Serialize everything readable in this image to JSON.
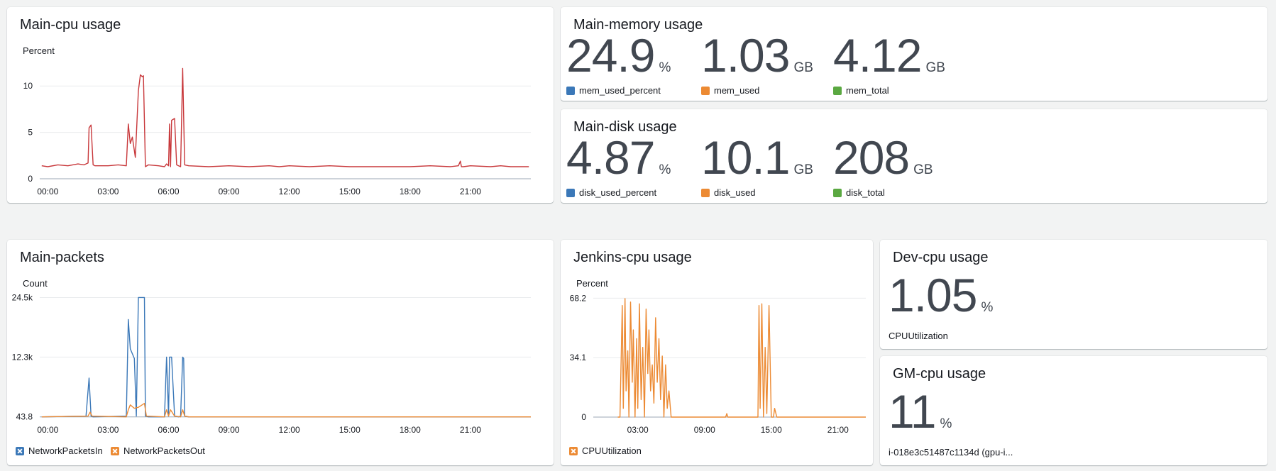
{
  "colors": {
    "blue": "#3b78b8",
    "orange": "#ec8a33",
    "green": "#5aa841",
    "red": "#c8383b",
    "grid": "#e9ebed"
  },
  "widgets": {
    "main_cpu": {
      "title": "Main-cpu usage",
      "unit": "Percent"
    },
    "main_memory": {
      "title": "Main-memory usage",
      "metrics": [
        {
          "value": "24.9",
          "unit": "%",
          "label": "mem_used_percent",
          "color": "#3b78b8"
        },
        {
          "value": "1.03",
          "unit": "GB",
          "label": "mem_used",
          "color": "#ec8a33"
        },
        {
          "value": "4.12",
          "unit": "GB",
          "label": "mem_total",
          "color": "#5aa841"
        }
      ]
    },
    "main_disk": {
      "title": "Main-disk usage",
      "metrics": [
        {
          "value": "4.87",
          "unit": "%",
          "label": "disk_used_percent",
          "color": "#3b78b8"
        },
        {
          "value": "10.1",
          "unit": "GB",
          "label": "disk_used",
          "color": "#ec8a33"
        },
        {
          "value": "208",
          "unit": "GB",
          "label": "disk_total",
          "color": "#5aa841"
        }
      ]
    },
    "main_packets": {
      "title": "Main-packets",
      "unit": "Count",
      "legend": [
        "NetworkPacketsIn",
        "NetworkPacketsOut"
      ]
    },
    "jenkins_cpu": {
      "title": "Jenkins-cpu usage",
      "unit": "Percent",
      "legend": [
        "CPUUtilization"
      ]
    },
    "dev_cpu": {
      "title": "Dev-cpu usage",
      "value": "1.05",
      "unit": "%",
      "label": "CPUUtilization"
    },
    "gm_cpu": {
      "title": "GM-cpu usage",
      "value": "11",
      "unit": "%",
      "label": "i-018e3c51487c1134d (gpu-i..."
    }
  },
  "chart_data": [
    {
      "id": "main_cpu",
      "type": "line",
      "title": "Main-cpu usage",
      "ylabel": "Percent",
      "xlim": [
        -0.4,
        24
      ],
      "ylim": [
        0,
        13
      ],
      "yticks": [
        0,
        5,
        10
      ],
      "ytick_labels": [
        "0",
        "5",
        "10"
      ],
      "xticks": [
        0,
        3,
        6,
        9,
        12,
        15,
        18,
        21
      ],
      "xtick_labels": [
        "00:00",
        "03:00",
        "06:00",
        "09:00",
        "12:00",
        "15:00",
        "18:00",
        "21:00"
      ],
      "grid": true,
      "series": [
        {
          "color": "#c8383b",
          "x": [
            -0.3,
            0,
            0.5,
            1,
            1.5,
            1.8,
            2.0,
            2.05,
            2.15,
            2.25,
            2.35,
            2.6,
            3,
            3.5,
            3.9,
            4.0,
            4.1,
            4.2,
            4.35,
            4.5,
            4.6,
            4.7,
            4.75,
            4.85,
            5.0,
            5.5,
            5.8,
            5.9,
            6.0,
            6.05,
            6.1,
            6.15,
            6.3,
            6.4,
            6.5,
            6.6,
            6.7,
            6.8,
            7.0,
            8.0,
            9.0,
            10.0,
            11.0,
            11.5,
            12.0,
            13.0,
            14.0,
            15.0,
            16.0,
            17.0,
            18.0,
            19.0,
            20.0,
            20.4,
            20.5,
            20.55,
            20.65,
            21.0,
            22.0,
            22.5,
            23.0,
            23.5,
            23.9
          ],
          "y": [
            1.4,
            1.3,
            1.5,
            1.4,
            1.6,
            1.5,
            1.7,
            5.5,
            5.8,
            1.5,
            1.4,
            1.4,
            1.4,
            1.5,
            1.4,
            5.9,
            3.8,
            4.5,
            2.3,
            9.5,
            11.2,
            11.0,
            11.1,
            1.3,
            1.5,
            1.4,
            1.3,
            1.6,
            1.4,
            5.9,
            1.3,
            6.3,
            6.5,
            1.5,
            1.4,
            1.3,
            11.9,
            1.5,
            1.4,
            1.3,
            1.4,
            1.3,
            1.4,
            1.3,
            1.4,
            1.3,
            1.4,
            1.3,
            1.3,
            1.3,
            1.3,
            1.4,
            1.3,
            1.4,
            1.9,
            1.3,
            1.3,
            1.4,
            1.3,
            1.4,
            1.3,
            1.3,
            1.3
          ]
        }
      ]
    },
    {
      "id": "main_packets",
      "type": "line",
      "title": "Main-packets",
      "ylabel": "Count",
      "xlim": [
        -0.4,
        24
      ],
      "ylim": [
        0,
        25000
      ],
      "yticks": [
        43.8,
        12300,
        24500
      ],
      "ytick_labels": [
        "43.8",
        "12.3k",
        "24.5k"
      ],
      "xticks": [
        0,
        3,
        6,
        9,
        12,
        15,
        18,
        21
      ],
      "xtick_labels": [
        "00:00",
        "03:00",
        "06:00",
        "09:00",
        "12:00",
        "15:00",
        "18:00",
        "21:00"
      ],
      "grid": true,
      "series": [
        {
          "name": "NetworkPacketsIn",
          "color": "#3b78b8",
          "x": [
            -0.3,
            1.9,
            2.05,
            2.15,
            2.25,
            3.9,
            4.0,
            4.1,
            4.15,
            4.3,
            4.4,
            4.5,
            4.8,
            4.85,
            5.0,
            5.8,
            5.9,
            6.0,
            6.05,
            6.15,
            6.3,
            6.5,
            6.6,
            6.7,
            6.75,
            6.8,
            7.0,
            24
          ],
          "y": [
            44,
            200,
            8000,
            200,
            44,
            200,
            20000,
            14000,
            13500,
            12000,
            200,
            24500,
            24500,
            200,
            44,
            44,
            12300,
            200,
            12300,
            12300,
            200,
            44,
            200,
            12300,
            12000,
            200,
            44,
            44
          ]
        },
        {
          "name": "NetworkPacketsOut",
          "color": "#ec8a33",
          "x": [
            -0.3,
            2.0,
            2.1,
            2.2,
            3.9,
            4.0,
            4.1,
            4.3,
            4.5,
            4.8,
            4.9,
            5.8,
            5.9,
            6.0,
            6.1,
            6.3,
            6.6,
            6.7,
            6.8,
            7.0,
            24
          ],
          "y": [
            44,
            200,
            1000,
            200,
            44,
            1500,
            2500,
            1800,
            2000,
            2800,
            200,
            44,
            1500,
            200,
            1500,
            200,
            44,
            1500,
            200,
            44,
            44
          ]
        }
      ]
    },
    {
      "id": "jenkins_cpu",
      "type": "line",
      "title": "Jenkins-cpu usage",
      "ylabel": "Percent",
      "xlim": [
        -1,
        23.5
      ],
      "ylim": [
        0,
        70
      ],
      "yticks": [
        0,
        34.1,
        68.2
      ],
      "ytick_labels": [
        "0",
        "34.1",
        "68.2"
      ],
      "xticks": [
        3,
        9,
        15,
        21
      ],
      "xtick_labels": [
        "03:00",
        "09:00",
        "15:00",
        "21:00"
      ],
      "grid": true,
      "series": [
        {
          "name": "CPUUtilization",
          "color": "#ec8a33",
          "x": [
            1.2,
            1.4,
            1.6,
            1.7,
            1.85,
            1.95,
            2.1,
            2.2,
            2.35,
            2.5,
            2.6,
            2.75,
            2.9,
            3.0,
            3.15,
            3.3,
            3.45,
            3.6,
            3.75,
            3.9,
            4.0,
            4.15,
            4.3,
            4.45,
            4.6,
            4.75,
            4.9,
            5.05,
            5.2,
            5.35,
            5.5,
            5.65,
            5.8,
            6.0,
            7.0,
            8.0,
            9.0,
            10.0,
            10.9,
            11.0,
            11.1,
            12.0,
            13.0,
            13.8,
            13.9,
            14.0,
            14.15,
            14.3,
            14.45,
            14.6,
            14.8,
            15.0,
            15.2,
            15.3,
            15.5,
            16.0,
            17.0,
            19.0,
            21.0,
            23.5
          ],
          "y": [
            0,
            0,
            64,
            5,
            68,
            15,
            38,
            0,
            66,
            20,
            50,
            0,
            45,
            5,
            65,
            10,
            40,
            0,
            62,
            25,
            50,
            15,
            30,
            8,
            57,
            20,
            45,
            10,
            35,
            0,
            30,
            5,
            15,
            0,
            0,
            0,
            0,
            0,
            0,
            2,
            0,
            0,
            0,
            0,
            64,
            5,
            65,
            0,
            40,
            2,
            64,
            0,
            0,
            5,
            0,
            0,
            0,
            0,
            0,
            0
          ]
        }
      ]
    }
  ]
}
